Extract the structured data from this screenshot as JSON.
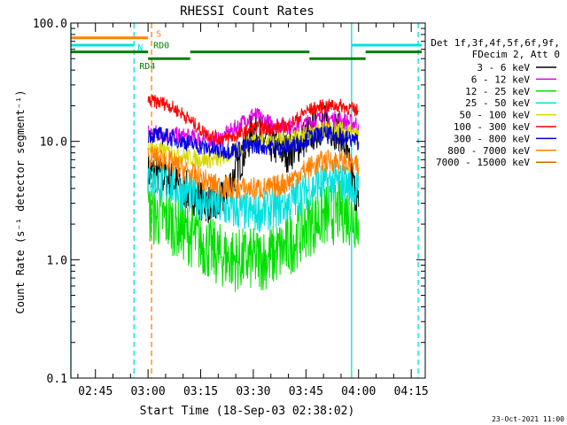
{
  "window": {
    "date_stamp": "23-Oct-2021 11:00"
  },
  "chart_data": {
    "type": "line",
    "title": "RHESSI Count Rates",
    "xlabel": "Start Time (18-Sep-03 02:38:02)",
    "ylabel": "Count Rate (s⁻¹ detector segment⁻¹)",
    "y_scale": "log",
    "ylim": [
      0.1,
      100.0
    ],
    "xlim": [
      "02:38",
      "04:19"
    ],
    "x_ticks": [
      "02:45",
      "03:00",
      "03:15",
      "03:30",
      "03:45",
      "04:00",
      "04:15"
    ],
    "y_ticks": [
      "0.1",
      "1.0",
      "10.0",
      "100.0"
    ],
    "legend_header": [
      "Det 1f,3f,4f,5f,6f,9f,",
      "FDecim 2, Att 0"
    ],
    "legend_position": "right",
    "series": [
      {
        "name": "3 - 6 keV",
        "color": "#000000",
        "x": [
          "03:00",
          "03:05",
          "03:10",
          "03:15",
          "03:20",
          "03:25",
          "03:30",
          "03:35",
          "03:40",
          "03:45",
          "03:50",
          "03:55",
          "04:00"
        ],
        "y": [
          5.5,
          5.0,
          4.0,
          3.2,
          2.7,
          5.5,
          13.0,
          9.5,
          8.0,
          11.0,
          14.0,
          12.0,
          2.8
        ]
      },
      {
        "name": "6 - 12 keV",
        "color": "#e000e0",
        "x": [
          "03:00",
          "03:05",
          "03:10",
          "03:15",
          "03:20",
          "03:25",
          "03:30",
          "03:35",
          "03:40",
          "03:45",
          "03:50",
          "03:55",
          "04:00"
        ],
        "y": [
          12.0,
          11.5,
          11.0,
          10.5,
          10.2,
          13.0,
          17.0,
          14.0,
          13.5,
          14.0,
          16.0,
          15.0,
          14.0
        ]
      },
      {
        "name": "12 - 25 keV",
        "color": "#00e000",
        "x": [
          "03:00",
          "03:05",
          "03:10",
          "03:15",
          "03:20",
          "03:25",
          "03:30",
          "03:35",
          "03:40",
          "03:45",
          "03:50",
          "03:55",
          "04:00"
        ],
        "y": [
          2.5,
          2.2,
          1.8,
          1.4,
          1.1,
          1.0,
          1.0,
          1.05,
          1.3,
          1.9,
          2.3,
          2.6,
          2.2
        ]
      },
      {
        "name": "25 - 50 keV",
        "color": "#00e0e0",
        "x": [
          "03:00",
          "03:05",
          "03:10",
          "03:15",
          "03:20",
          "03:25",
          "03:30",
          "03:35",
          "03:40",
          "03:45",
          "03:50",
          "03:55",
          "04:00"
        ],
        "y": [
          4.8,
          4.4,
          3.8,
          3.2,
          2.8,
          2.6,
          2.5,
          2.6,
          3.0,
          3.8,
          4.5,
          4.5,
          4.0
        ]
      },
      {
        "name": "50 - 100 keV",
        "color": "#d8d800",
        "x": [
          "03:00",
          "03:05",
          "03:10",
          "03:15",
          "03:20",
          "03:25",
          "03:30",
          "03:35",
          "03:40",
          "03:45",
          "03:50",
          "03:55",
          "04:00"
        ],
        "y": [
          9.0,
          8.2,
          7.5,
          7.0,
          7.0,
          8.2,
          10.5,
          10.0,
          10.5,
          11.5,
          12.5,
          12.5,
          11.0
        ]
      },
      {
        "name": "100 - 300 keV",
        "color": "#ff0000",
        "x": [
          "03:00",
          "03:05",
          "03:10",
          "03:15",
          "03:20",
          "03:25",
          "03:30",
          "03:35",
          "03:40",
          "03:45",
          "03:50",
          "03:55",
          "04:00"
        ],
        "y": [
          22.0,
          21.0,
          17.0,
          12.5,
          10.5,
          11.0,
          13.0,
          13.0,
          13.5,
          18.0,
          20.0,
          20.0,
          18.0
        ]
      },
      {
        "name": "300 - 800 keV",
        "color": "#0000e0",
        "x": [
          "03:00",
          "03:05",
          "03:10",
          "03:15",
          "03:20",
          "03:25",
          "03:30",
          "03:35",
          "03:40",
          "03:45",
          "03:50",
          "03:55",
          "04:00"
        ],
        "y": [
          11.5,
          11.0,
          10.0,
          9.0,
          8.3,
          8.5,
          9.3,
          9.0,
          9.0,
          10.5,
          11.5,
          11.0,
          10.0
        ]
      },
      {
        "name": "800 - 7000 keV",
        "color": "#ff8000",
        "x": [
          "03:00",
          "03:05",
          "03:10",
          "03:15",
          "03:20",
          "03:25",
          "03:30",
          "03:35",
          "03:40",
          "03:45",
          "03:50",
          "03:55",
          "04:00"
        ],
        "y": [
          7.5,
          7.0,
          5.8,
          4.8,
          4.2,
          4.0,
          4.0,
          4.0,
          4.6,
          5.8,
          6.8,
          6.8,
          6.0
        ]
      },
      {
        "name": "7000 - 15000 keV",
        "color": "#c07000",
        "x": [],
        "y": []
      }
    ],
    "flags": {
      "labels": {
        "s": "S",
        "n": "N",
        "rd0": "RD0",
        "rd4": "RD4"
      },
      "s": {
        "color": "#ff8000",
        "y_level": 75.0,
        "intervals": [
          [
            "02:38",
            "03:00"
          ]
        ]
      },
      "n": {
        "color": "#00e0e0",
        "y_level": 65.0,
        "intervals": [
          [
            "02:38",
            "02:56"
          ],
          [
            "03:58",
            "04:18"
          ]
        ]
      },
      "rd0": {
        "color": "#008000",
        "y_level": 57.0,
        "intervals": [
          [
            "02:38",
            "03:00"
          ],
          [
            "03:12",
            "03:46"
          ],
          [
            "04:02",
            "04:18"
          ]
        ]
      },
      "rd4": {
        "color": "#008000",
        "y_level": 50.0,
        "intervals": [
          [
            "03:00",
            "03:12"
          ],
          [
            "03:46",
            "04:02"
          ]
        ]
      }
    },
    "vertical_lines": [
      {
        "time": "02:38",
        "color": "#00e0e0",
        "style": "solid"
      },
      {
        "time": "02:56",
        "color": "#00e0e0",
        "style": "dashed"
      },
      {
        "time": "03:01",
        "color": "#ff8000",
        "style": "dashed"
      },
      {
        "time": "03:58",
        "color": "#00e0e0",
        "style": "solid"
      },
      {
        "time": "04:17",
        "color": "#00e0e0",
        "style": "dashed"
      }
    ]
  }
}
